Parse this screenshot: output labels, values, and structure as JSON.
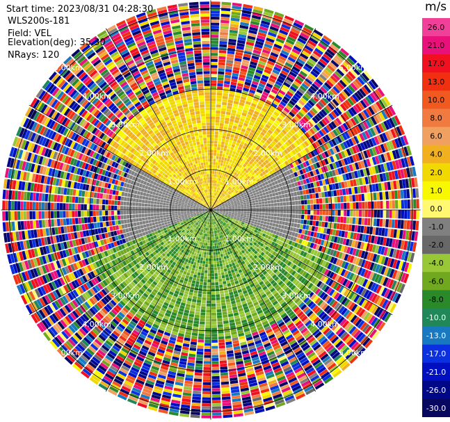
{
  "info": {
    "start_time": "Start time: 2023/08/31 04:28:30",
    "instrument": "WLS200s-181",
    "field": "Field: VEL",
    "elevation": "Elevation(deg): 35.30",
    "nrays": "NRays: 120"
  },
  "colorbar": {
    "title": "m/s",
    "ticks": [
      "26.0",
      "21.0",
      "17.0",
      "13.0",
      "10.0",
      "8.0",
      "6.0",
      "4.0",
      "2.0",
      "1.0",
      "0.0",
      "-1.0",
      "-2.0",
      "-4.0",
      "-6.0",
      "-8.0",
      "-10.0",
      "-13.0",
      "-17.0",
      "-21.0",
      "-26.0",
      "-30.0"
    ],
    "colors": [
      "#f0409a",
      "#e8107a",
      "#f01020",
      "#f03010",
      "#f05a20",
      "#f07a40",
      "#f0a060",
      "#f0b020",
      "#f0d800",
      "#f8f800",
      "#fff870",
      "#808080",
      "#686868",
      "#98c838",
      "#70a820",
      "#2a8a2a",
      "#208858",
      "#1878c0",
      "#0a30e0",
      "#0010c0",
      "#000888",
      "#080860"
    ]
  },
  "chart_data": {
    "type": "heatmap",
    "projection": "polar PPI (plan position indicator)",
    "range_rings_km": [
      1.0,
      2.0,
      3.0,
      4.0,
      5.0
    ],
    "ring_label_text": [
      "1.00km",
      "2.00km",
      "3.00km",
      "4.00km",
      "5.00km"
    ],
    "spokes_deg": [
      0,
      30,
      60,
      90,
      120,
      150,
      180,
      210,
      240,
      270,
      300,
      330
    ],
    "max_range_km": 5.2,
    "nrays": 120,
    "units": "m/s",
    "vmin": -30.0,
    "vmax": 26.0,
    "description_regions": [
      {
        "sector": "north (azimuth 300-60 deg)",
        "range_km": [
          0,
          3.0
        ],
        "value_range": [
          1.0,
          6.0
        ]
      },
      {
        "sector": "west and east (azimuth 60-110, 250-300 deg)",
        "range_km": [
          0,
          2.2
        ],
        "value_range": [
          -1.0,
          0.0
        ]
      },
      {
        "sector": "south (azimuth 110-250 deg)",
        "range_km": [
          0,
          3.2
        ],
        "value_range": [
          -8.0,
          -2.0
        ]
      },
      {
        "sector": "all",
        "range_km": [
          3.0,
          5.2
        ],
        "value_range": [
          -30.0,
          26.0
        ],
        "note": "noise"
      }
    ]
  }
}
